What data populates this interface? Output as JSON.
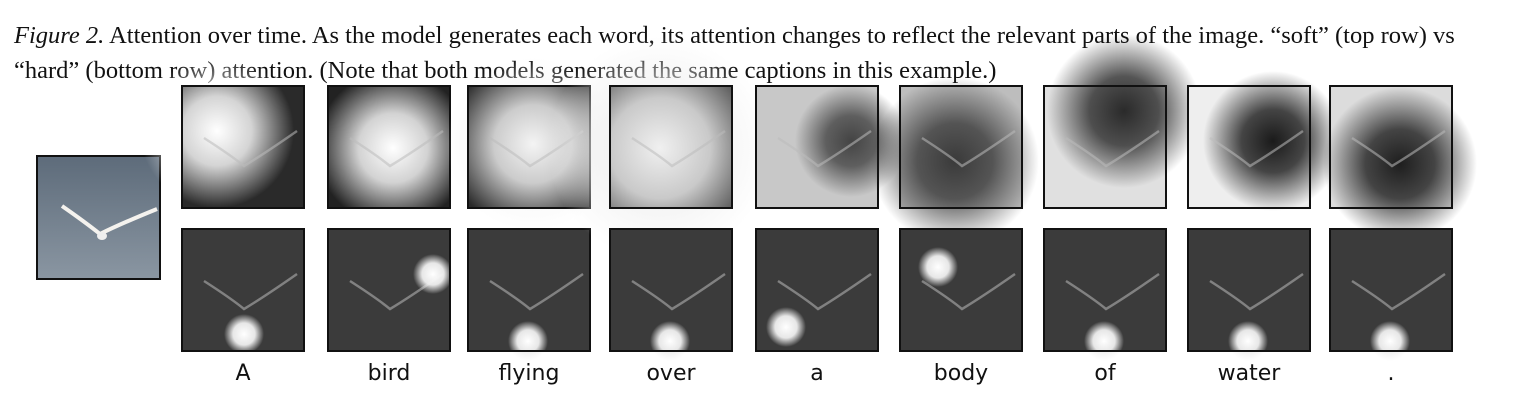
{
  "caption": {
    "label": "Figure 2.",
    "text": "Attention over time. As the model generates each word, its attention changes to reflect the relevant parts of the image. “soft” (top row) vs “hard” (bottom row) attention. (Note that both models generated the same captions in this example.)"
  },
  "words": [
    "A",
    "bird",
    "flying",
    "over",
    "a",
    "body",
    "of",
    "water",
    "."
  ]
}
